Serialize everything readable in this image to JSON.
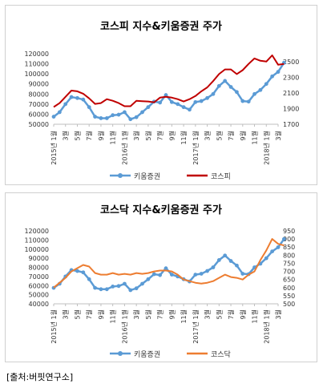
{
  "chart_data": [
    {
      "type": "line",
      "title": "코스피 지수&키움증권 주가",
      "x_tick_labels": [
        "2015년 1월",
        "3월",
        "5월",
        "7월",
        "9월",
        "11월",
        "2016년 1월",
        "3월",
        "5월",
        "7월",
        "9월",
        "11월",
        "2017년 1월",
        "3월",
        "5월",
        "7월",
        "9월",
        "11월",
        "2018년 1월",
        "3월"
      ],
      "y_left_ticks": [
        "50000",
        "60000",
        "70000",
        "80000",
        "90000",
        "100000",
        "110000",
        "120000"
      ],
      "y_left_range": [
        50000,
        120000
      ],
      "y_right_ticks": [
        "1700",
        "1900",
        "2100",
        "2300",
        "2500"
      ],
      "y_right_range": [
        1700,
        2600
      ],
      "series": [
        {
          "name": "키움증권",
          "axis": "left",
          "color": "#5b9bd5",
          "marker": true,
          "x": [
            0,
            0.5,
            1,
            1.5,
            2,
            2.5,
            3,
            3.5,
            4,
            4.5,
            5,
            5.5,
            6,
            6.5,
            7,
            7.5,
            8,
            8.5,
            9,
            9.5,
            10,
            10.5,
            11,
            11.5,
            12,
            12.5,
            13,
            13.5,
            14,
            14.5,
            15,
            15.5,
            16,
            16.5,
            17,
            17.5,
            18,
            18.5,
            19,
            19.5
          ],
          "values": [
            57500,
            62000,
            70000,
            77000,
            76000,
            74500,
            67000,
            57500,
            56000,
            56000,
            59000,
            59500,
            62000,
            55000,
            57000,
            62000,
            67000,
            72500,
            71500,
            79000,
            72000,
            70000,
            67000,
            64500,
            72000,
            73000,
            76000,
            80000,
            88000,
            93000,
            87000,
            82000,
            73000,
            72500,
            80000,
            84000,
            90000,
            97500,
            102000,
            111000
          ]
        },
        {
          "name": "코스피",
          "axis": "right",
          "color": "#c00000",
          "marker": false,
          "x": [
            0,
            0.5,
            1,
            1.5,
            2,
            2.5,
            3,
            3.5,
            4,
            4.5,
            5,
            5.5,
            6,
            6.5,
            7,
            7.5,
            8,
            8.5,
            9,
            9.5,
            10,
            10.5,
            11,
            11.5,
            12,
            12.5,
            13,
            13.5,
            14,
            14.5,
            15,
            15.5,
            16,
            16.5,
            17,
            17.5,
            18,
            18.5,
            19,
            19.5
          ],
          "values": [
            1920,
            1970,
            2050,
            2130,
            2120,
            2090,
            2030,
            1960,
            1970,
            2020,
            2000,
            1970,
            1930,
            1930,
            2000,
            1995,
            1990,
            1980,
            2040,
            2050,
            2040,
            2020,
            1990,
            2020,
            2060,
            2120,
            2170,
            2250,
            2340,
            2400,
            2400,
            2340,
            2390,
            2470,
            2540,
            2510,
            2500,
            2580,
            2460,
            2470
          ]
        }
      ]
    },
    {
      "type": "line",
      "title": "코스닥 지수&키움증권 주가",
      "x_tick_labels": [
        "2015년 1월",
        "3월",
        "5월",
        "7월",
        "9월",
        "11월",
        "2016년 1월",
        "3월",
        "5월",
        "7월",
        "9월",
        "11월",
        "2017년 1월",
        "3월",
        "5월",
        "7월",
        "9월",
        "11월",
        "2018년 1월",
        "3월"
      ],
      "y_left_ticks": [
        "40000",
        "50000",
        "60000",
        "70000",
        "80000",
        "90000",
        "100000",
        "110000",
        "120000"
      ],
      "y_left_range": [
        40000,
        120000
      ],
      "y_right_ticks": [
        "500",
        "550",
        "600",
        "650",
        "700",
        "750",
        "800",
        "850",
        "900",
        "950"
      ],
      "y_right_range": [
        500,
        950
      ],
      "series": [
        {
          "name": "키움증권",
          "axis": "left",
          "color": "#5b9bd5",
          "marker": true,
          "x": [
            0,
            0.5,
            1,
            1.5,
            2,
            2.5,
            3,
            3.5,
            4,
            4.5,
            5,
            5.5,
            6,
            6.5,
            7,
            7.5,
            8,
            8.5,
            9,
            9.5,
            10,
            10.5,
            11,
            11.5,
            12,
            12.5,
            13,
            13.5,
            14,
            14.5,
            15,
            15.5,
            16,
            16.5,
            17,
            17.5,
            18,
            18.5,
            19,
            19.5
          ],
          "values": [
            57500,
            62000,
            70000,
            77000,
            76000,
            74500,
            67000,
            57500,
            56000,
            56000,
            59000,
            59500,
            62000,
            55000,
            57000,
            62000,
            67000,
            72500,
            71500,
            79000,
            72000,
            70000,
            67000,
            64500,
            72000,
            73000,
            76000,
            80000,
            88000,
            93000,
            87000,
            82000,
            73000,
            72500,
            80000,
            84000,
            90000,
            97500,
            102000,
            111000
          ]
        },
        {
          "name": "코스닥",
          "axis": "right",
          "color": "#ed7d31",
          "marker": false,
          "x": [
            0,
            0.5,
            1,
            1.5,
            2,
            2.5,
            3,
            3.5,
            4,
            4.5,
            5,
            5.5,
            6,
            6.5,
            7,
            7.5,
            8,
            8.5,
            9,
            9.5,
            10,
            10.5,
            11,
            11.5,
            12,
            12.5,
            13,
            13.5,
            14,
            14.5,
            15,
            15.5,
            16,
            16.5,
            17,
            17.5,
            18,
            18.5,
            19,
            19.5
          ],
          "values": [
            600,
            630,
            660,
            700,
            720,
            740,
            730,
            690,
            680,
            680,
            690,
            680,
            685,
            680,
            690,
            685,
            690,
            700,
            705,
            705,
            700,
            680,
            650,
            640,
            630,
            625,
            630,
            640,
            660,
            680,
            665,
            660,
            650,
            680,
            700,
            770,
            830,
            900,
            870,
            860
          ]
        }
      ]
    }
  ],
  "source_note": "[출처:버핏연구소]"
}
